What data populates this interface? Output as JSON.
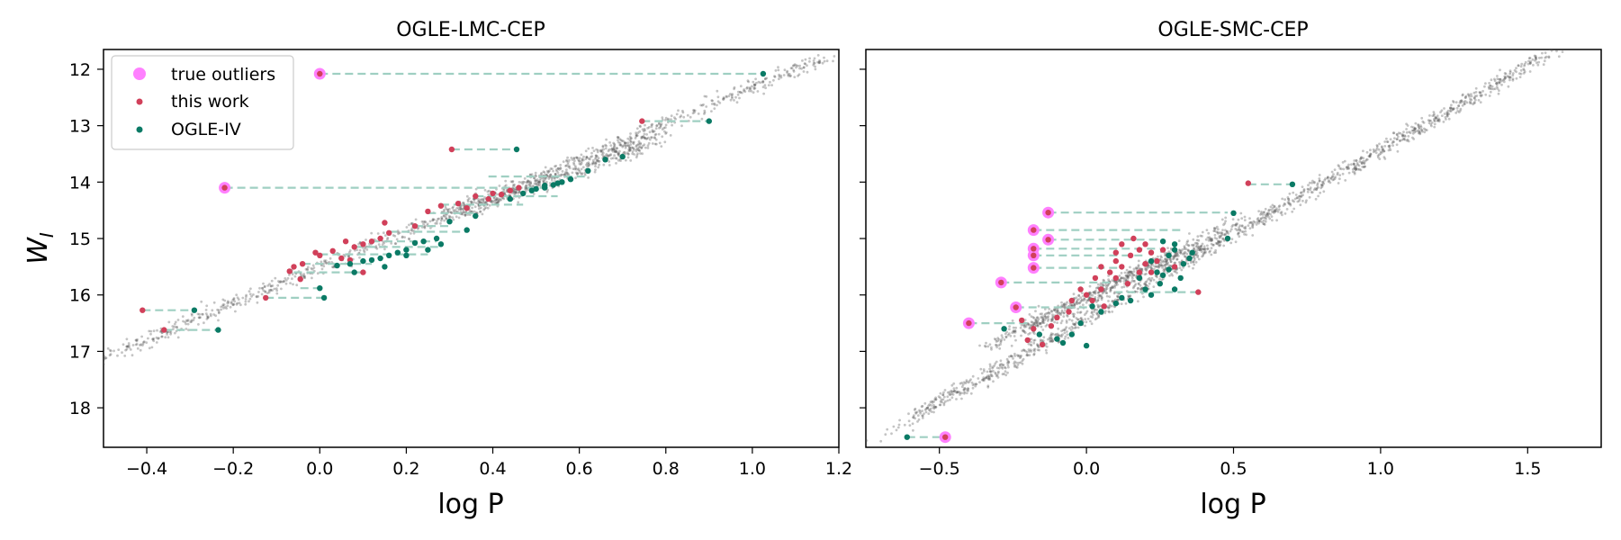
{
  "chart_data": [
    {
      "type": "scatter",
      "title": "OGLE-LMC-CEP",
      "xlabel": "log P",
      "ylabel": "W",
      "ylabel_subscript": "I",
      "xlim": [
        -0.5,
        1.2
      ],
      "ylim": [
        18.7,
        11.65
      ],
      "y_inverted": true,
      "xticks": [
        -0.4,
        -0.2,
        0.0,
        0.2,
        0.4,
        0.6,
        0.8,
        1.0,
        1.2
      ],
      "xtick_labels": [
        "−0.4",
        "−0.2",
        "0.0",
        "0.2",
        "0.4",
        "0.6",
        "0.8",
        "1.0",
        "1.2"
      ],
      "yticks": [
        12,
        13,
        14,
        15,
        16,
        17,
        18
      ],
      "ytick_labels": [
        "12",
        "13",
        "14",
        "15",
        "16",
        "17",
        "18"
      ],
      "grid": false,
      "legend": {
        "placement": "top-left",
        "entries": [
          {
            "label": "true outliers",
            "color": "#ff80ff",
            "marker": "large-circle"
          },
          {
            "label": "this work",
            "color": "#d1405a",
            "marker": "dot"
          },
          {
            "label": "OGLE-IV",
            "color": "#0a7a65",
            "marker": "dot"
          }
        ]
      },
      "background_trend": {
        "color": "#555555",
        "bands": [
          {
            "x": [
              -0.48,
              1.18
            ],
            "y": [
              17.05,
              11.75
            ],
            "spread_x": 0.035,
            "n": 900
          },
          {
            "x": [
              0.3,
              0.78
            ],
            "y": [
              14.6,
              13.25
            ],
            "spread_x": 0.025,
            "n": 500
          }
        ]
      },
      "series": [
        {
          "name": "true outliers",
          "points": [
            [
              0.0,
              12.08
            ],
            [
              -0.22,
              14.1
            ]
          ]
        },
        {
          "name": "this work",
          "points": [
            [
              0.0,
              12.08
            ],
            [
              -0.22,
              14.1
            ],
            [
              0.745,
              12.92
            ],
            [
              0.305,
              13.42
            ],
            [
              -0.41,
              16.27
            ],
            [
              -0.36,
              16.62
            ],
            [
              -0.125,
              16.05
            ],
            [
              0.36,
              14.25
            ],
            [
              0.25,
              14.52
            ],
            [
              0.39,
              14.3
            ],
            [
              0.22,
              14.78
            ],
            [
              0.15,
              14.72
            ],
            [
              0.16,
              14.9
            ],
            [
              0.06,
              15.05
            ],
            [
              0.1,
              15.1
            ],
            [
              0.12,
              15.05
            ],
            [
              0.14,
              15.0
            ],
            [
              0.08,
              15.15
            ],
            [
              0.0,
              15.3
            ],
            [
              0.03,
              15.22
            ],
            [
              -0.04,
              15.45
            ],
            [
              -0.01,
              15.25
            ],
            [
              0.05,
              15.35
            ],
            [
              0.07,
              15.38
            ],
            [
              -0.06,
              15.5
            ],
            [
              -0.07,
              15.58
            ],
            [
              0.1,
              15.6
            ],
            [
              0.28,
              14.42
            ],
            [
              0.32,
              14.38
            ],
            [
              0.34,
              14.46
            ],
            [
              0.4,
              14.2
            ],
            [
              0.44,
              14.15
            ],
            [
              0.46,
              14.1
            ],
            [
              0.42,
              14.22
            ],
            [
              -0.045,
              15.72
            ]
          ]
        },
        {
          "name": "OGLE-IV",
          "points": [
            [
              1.025,
              12.08
            ],
            [
              0.9,
              12.92
            ],
            [
              0.455,
              13.42
            ],
            [
              -0.29,
              16.27
            ],
            [
              -0.235,
              16.62
            ],
            [
              0.01,
              16.05
            ],
            [
              0.0,
              15.88
            ],
            [
              0.55,
              14.02
            ],
            [
              0.58,
              13.95
            ],
            [
              0.62,
              13.8
            ],
            [
              0.52,
              14.1
            ],
            [
              0.54,
              14.05
            ],
            [
              0.5,
              14.12
            ],
            [
              0.47,
              14.2
            ],
            [
              0.56,
              14.0
            ],
            [
              0.44,
              14.3
            ],
            [
              0.36,
              14.6
            ],
            [
              0.3,
              14.7
            ],
            [
              0.34,
              14.85
            ],
            [
              0.27,
              15.0
            ],
            [
              0.28,
              15.1
            ],
            [
              0.24,
              15.05
            ],
            [
              0.22,
              15.08
            ],
            [
              0.25,
              15.2
            ],
            [
              0.2,
              15.2
            ],
            [
              0.18,
              15.25
            ],
            [
              0.16,
              15.3
            ],
            [
              0.14,
              15.35
            ],
            [
              0.12,
              15.38
            ],
            [
              0.1,
              15.4
            ],
            [
              0.07,
              15.45
            ],
            [
              0.08,
              15.6
            ],
            [
              0.15,
              15.5
            ],
            [
              0.2,
              15.3
            ],
            [
              0.04,
              15.48
            ],
            [
              0.52,
              14.06
            ],
            [
              0.49,
              14.15
            ],
            [
              0.66,
              13.6
            ],
            [
              0.7,
              13.55
            ]
          ]
        }
      ],
      "connectors": {
        "style": "dashed",
        "color": "#9fcfc2",
        "pairs": [
          [
            0.0,
            1.025,
            12.08
          ],
          [
            -0.22,
            0.53,
            14.1
          ],
          [
            0.745,
            0.9,
            12.92
          ],
          [
            0.305,
            0.455,
            13.42
          ],
          [
            -0.41,
            -0.29,
            16.27
          ],
          [
            -0.36,
            -0.235,
            16.62
          ],
          [
            -0.125,
            0.01,
            16.05
          ],
          [
            -0.045,
            0.0,
            15.88
          ],
          [
            0.36,
            0.55,
            14.25
          ],
          [
            0.25,
            0.36,
            14.55
          ],
          [
            0.22,
            0.3,
            14.78
          ],
          [
            0.16,
            0.34,
            14.88
          ],
          [
            0.12,
            0.27,
            15.05
          ],
          [
            0.08,
            0.28,
            15.15
          ],
          [
            0.0,
            0.25,
            15.28
          ],
          [
            -0.04,
            0.12,
            15.45
          ],
          [
            -0.06,
            0.1,
            15.6
          ],
          [
            0.39,
            0.62,
            13.9
          ],
          [
            0.28,
            0.47,
            14.4
          ]
        ]
      }
    },
    {
      "type": "scatter",
      "title": "OGLE-SMC-CEP",
      "xlabel": "log P",
      "xlim": [
        -0.75,
        1.75
      ],
      "ylim": [
        18.7,
        11.65
      ],
      "y_inverted": true,
      "xticks": [
        -0.5,
        0.0,
        0.5,
        1.0,
        1.5
      ],
      "xtick_labels": [
        "−0.5",
        "0.0",
        "0.5",
        "1.0",
        "1.5"
      ],
      "yticks": [
        12,
        13,
        14,
        15,
        16,
        17,
        18
      ],
      "ytick_labels": [],
      "grid": false,
      "background_trend": {
        "color": "#555555",
        "bands": [
          {
            "x": [
              -0.6,
              1.55
            ],
            "y": [
              18.2,
              11.8
            ],
            "spread_x": 0.07,
            "n": 1300
          },
          {
            "x": [
              -0.25,
              0.45
            ],
            "y": [
              16.7,
              14.9
            ],
            "spread_x": 0.09,
            "n": 700
          }
        ]
      },
      "series": [
        {
          "name": "true outliers",
          "points": [
            [
              -0.48,
              18.52
            ],
            [
              -0.4,
              16.5
            ],
            [
              -0.29,
              15.78
            ],
            [
              -0.24,
              16.22
            ],
            [
              -0.18,
              15.52
            ],
            [
              -0.18,
              15.3
            ],
            [
              -0.18,
              15.18
            ],
            [
              -0.18,
              14.85
            ],
            [
              -0.13,
              15.02
            ],
            [
              -0.13,
              14.54
            ]
          ]
        },
        {
          "name": "this work",
          "points": [
            [
              -0.48,
              18.52
            ],
            [
              -0.4,
              16.5
            ],
            [
              -0.29,
              15.78
            ],
            [
              -0.24,
              16.22
            ],
            [
              -0.18,
              15.52
            ],
            [
              -0.18,
              15.3
            ],
            [
              -0.18,
              15.18
            ],
            [
              -0.18,
              14.85
            ],
            [
              -0.13,
              15.02
            ],
            [
              -0.13,
              14.54
            ],
            [
              0.55,
              14.02
            ],
            [
              0.38,
              15.95
            ],
            [
              -0.2,
              16.8
            ],
            [
              -0.15,
              16.88
            ],
            [
              -0.18,
              16.6
            ],
            [
              -0.1,
              16.4
            ],
            [
              -0.05,
              16.1
            ],
            [
              0.0,
              16.0
            ],
            [
              0.05,
              15.9
            ],
            [
              0.1,
              15.7
            ],
            [
              0.12,
              15.5
            ],
            [
              0.15,
              15.3
            ],
            [
              0.18,
              15.2
            ],
            [
              0.2,
              15.1
            ],
            [
              0.22,
              15.25
            ],
            [
              0.24,
              15.4
            ],
            [
              0.26,
              15.2
            ],
            [
              0.1,
              15.4
            ],
            [
              0.08,
              15.6
            ],
            [
              0.14,
              15.8
            ],
            [
              0.18,
              15.6
            ],
            [
              0.2,
              15.45
            ],
            [
              0.05,
              15.5
            ],
            [
              0.03,
              15.7
            ],
            [
              -0.02,
              15.9
            ],
            [
              0.12,
              15.1
            ],
            [
              0.16,
              15.0
            ],
            [
              0.06,
              16.2
            ],
            [
              -0.06,
              16.3
            ],
            [
              -0.12,
              16.55
            ],
            [
              -0.22,
              16.45
            ],
            [
              0.22,
              15.6
            ],
            [
              0.3,
              15.5
            ],
            [
              0.02,
              16.1
            ],
            [
              0.1,
              15.25
            ]
          ]
        },
        {
          "name": "OGLE-IV",
          "points": [
            [
              -0.61,
              18.52
            ],
            [
              0.7,
              14.04
            ],
            [
              0.5,
              14.55
            ],
            [
              0.48,
              15.0
            ],
            [
              0.3,
              15.2
            ],
            [
              0.35,
              15.35
            ],
            [
              0.28,
              15.55
            ],
            [
              0.32,
              15.7
            ],
            [
              0.25,
              15.8
            ],
            [
              0.3,
              15.9
            ],
            [
              0.2,
              15.9
            ],
            [
              0.22,
              16.0
            ],
            [
              0.15,
              16.1
            ],
            [
              0.12,
              16.05
            ],
            [
              0.05,
              16.3
            ],
            [
              -0.02,
              16.5
            ],
            [
              -0.05,
              16.7
            ],
            [
              -0.08,
              16.85
            ],
            [
              -0.1,
              16.78
            ],
            [
              0.0,
              16.9
            ],
            [
              0.28,
              15.3
            ],
            [
              0.33,
              15.45
            ],
            [
              0.36,
              15.25
            ],
            [
              0.3,
              15.1
            ],
            [
              0.26,
              15.05
            ],
            [
              0.22,
              15.4
            ],
            [
              0.18,
              15.7
            ],
            [
              0.24,
              15.6
            ],
            [
              -0.16,
              16.7
            ],
            [
              -0.28,
              16.6
            ],
            [
              0.02,
              16.2
            ],
            [
              0.1,
              16.15
            ],
            [
              0.26,
              15.65
            ]
          ]
        }
      ],
      "connectors": {
        "style": "dashed",
        "color": "#9fcfc2",
        "pairs": [
          [
            -0.61,
            -0.48,
            18.52
          ],
          [
            -0.4,
            -0.2,
            16.5
          ],
          [
            -0.29,
            0.08,
            15.78
          ],
          [
            -0.24,
            0.02,
            16.22
          ],
          [
            -0.18,
            0.12,
            15.52
          ],
          [
            -0.18,
            0.2,
            15.3
          ],
          [
            -0.18,
            0.25,
            15.18
          ],
          [
            -0.18,
            0.32,
            14.85
          ],
          [
            -0.13,
            0.26,
            15.02
          ],
          [
            -0.13,
            0.48,
            14.54
          ],
          [
            0.55,
            0.7,
            14.04
          ],
          [
            0.38,
            0.1,
            15.95
          ]
        ]
      }
    }
  ]
}
